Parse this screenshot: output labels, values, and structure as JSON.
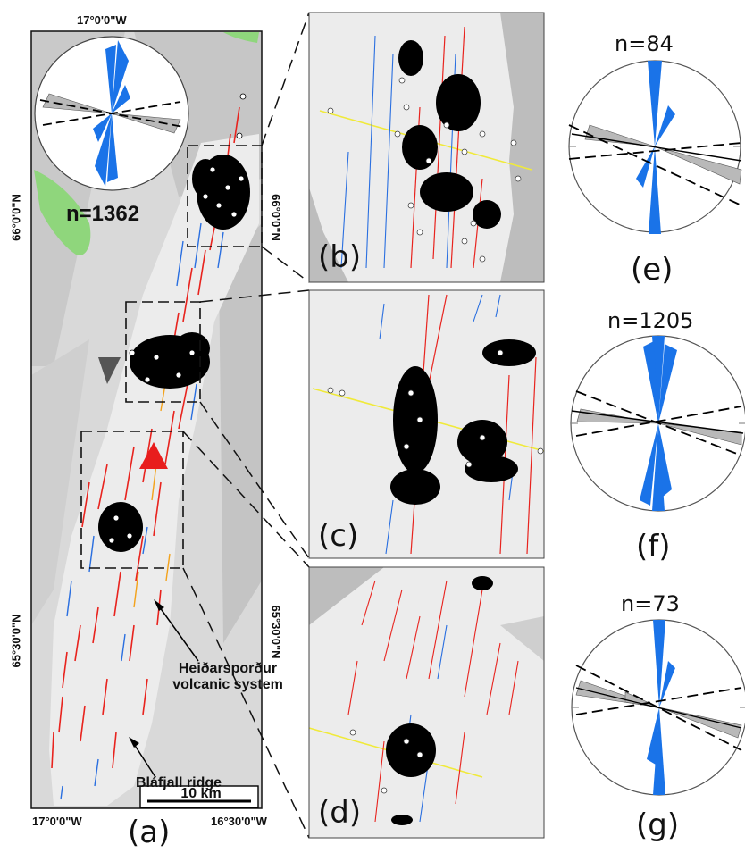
{
  "main_map": {
    "label": "(a)",
    "top_lon": "17°0'0\"W",
    "bottom_lon_left": "17°0'0\"W",
    "bottom_lon_right": "16°30'0\"W",
    "left_lat_1": "66°0'0\"N",
    "left_lat_2": "65°30'0\"N",
    "right_lat_1": "66°0'0\"N",
    "right_lat_2": "65°30'0\"N",
    "rose_count": "n=1362",
    "scale_bar": "10 km",
    "annotation_1": "Heiðarsporður volcanic system",
    "annotation_1_line1": "Heiðarsporður",
    "annotation_1_line2": "volcanic system",
    "annotation_2": "Bláfjall ridge"
  },
  "insets": [
    {
      "label": "(b)"
    },
    {
      "label": "(c)"
    },
    {
      "label": "(d)"
    }
  ],
  "roses": [
    {
      "label": "(e)",
      "count": "n=84"
    },
    {
      "label": "(f)",
      "count": "n=1205"
    },
    {
      "label": "(g)",
      "count": "n=73"
    }
  ],
  "colors": {
    "fracture_red": "#e8231e",
    "fracture_blue": "#2a6fe0",
    "fracture_orange": "#f3a21b",
    "rose_blue": "#1a73e8",
    "rose_grey": "#b9b9b9",
    "volcano_marker": "#e81d1d",
    "green_patch": "#8fd67c",
    "profile_yellow": "#f0ea3a"
  }
}
